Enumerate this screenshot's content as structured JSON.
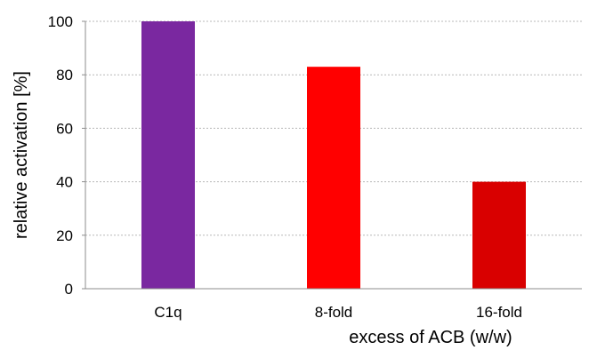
{
  "chart_data": {
    "type": "bar",
    "title": "",
    "xlabel": "excess of ACB (w/w)",
    "ylabel": "relative activation [%]",
    "categories": [
      "C1q",
      "8-fold",
      "16-fold"
    ],
    "values": [
      100,
      83,
      40
    ],
    "bar_colors": [
      "#7a28a0",
      "#ff0000",
      "#d90000"
    ],
    "ylim": [
      0,
      100
    ],
    "yticks": [
      0,
      20,
      40,
      60,
      80,
      100
    ],
    "grid": true,
    "grid_axis": "y",
    "legend": "none"
  }
}
